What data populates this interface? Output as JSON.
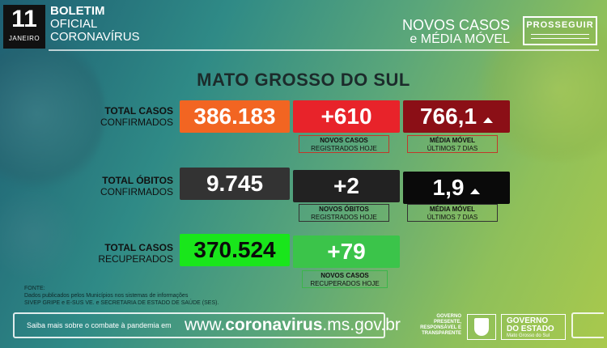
{
  "header": {
    "day": "11",
    "month": "JANEIRO",
    "bulletin_line1": "BOLETIM",
    "bulletin_line2": "OFICIAL",
    "bulletin_line3": "CORONAVÍRUS",
    "report_title_line1": "NOVOS CASOS",
    "report_title_line2": "e MÉDIA MÓVEL",
    "program_logo": "PROSSEGUIR"
  },
  "region": "MATO GROSSO DO SUL",
  "cases": {
    "label_bold": "TOTAL CASOS",
    "label": "CONFIRMADOS",
    "total": "386.183",
    "new": "+610",
    "new_caption_bold": "NOVOS CASOS",
    "new_caption": "REGISTRADOS HOJE",
    "moving_avg": "766,1",
    "moving_avg_caption_bold": "MÉDIA MÓVEL",
    "moving_avg_caption": "ÚLTIMOS 7 DIAS",
    "trend": "up",
    "colors": {
      "total": "#f26522",
      "new": "#e8232a",
      "avg": "#8b0f16"
    }
  },
  "deaths": {
    "label_bold": "TOTAL ÓBITOS",
    "label": "CONFIRMADOS",
    "total": "9.745",
    "new": "+2",
    "new_caption_bold": "NOVOS ÓBITOS",
    "new_caption": "REGISTRADOS HOJE",
    "moving_avg": "1,9",
    "moving_avg_caption_bold": "MÉDIA MÓVEL",
    "moving_avg_caption": "ÚLTIMOS 7 DIAS",
    "trend": "up",
    "colors": {
      "total": "#333333",
      "new": "#222222",
      "avg": "#0a0a0a"
    }
  },
  "recovered": {
    "label_bold": "TOTAL CASOS",
    "label": "RECUPERADOS",
    "total": "370.524",
    "new": "+79",
    "new_caption_bold": "NOVOS CASOS",
    "new_caption": "RECUPERADOS HOJE",
    "colors": {
      "total": "#19e61b",
      "new": "#3bc44a"
    }
  },
  "source": {
    "line1": "FONTE:",
    "line2": "Dados publicados pelos Municípios nos sistemas de informações",
    "line3": "SIVEP GRIPE e E-SUS VE. e SECRETARIA DE ESTADO DE SAÚDE (SES)."
  },
  "footer": {
    "note": "Saiba mais sobre o combate à pandemia em",
    "url_prefix": "www.",
    "url_bold": "coronavirus",
    "url_suffix": ".ms.gov.br",
    "slogan_1": "GOVERNO",
    "slogan_2": "PRESENTE,",
    "slogan_3": "RESPONSÁVEL E",
    "slogan_4": "TRANSPARENTE",
    "gov_title_1": "GOVERNO",
    "gov_title_2": "DO ESTADO",
    "gov_sub": "Mato Grosso do Sul"
  }
}
